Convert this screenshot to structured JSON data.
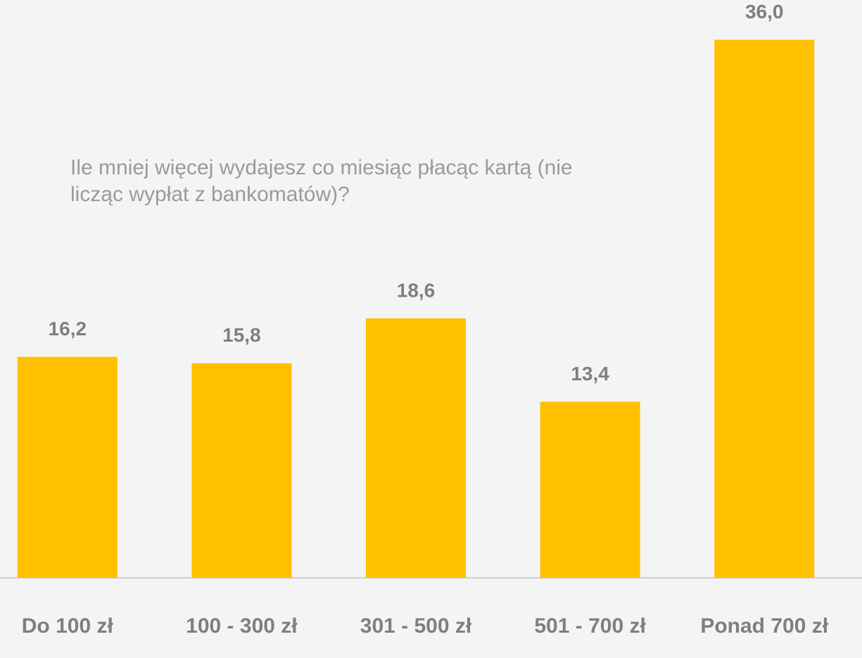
{
  "chart_data": {
    "type": "bar",
    "title": "Ile mniej więcej wydajesz co miesiąc płacąc kartą (nie licząc wypłat z bankomatów)?",
    "categories": [
      "Do 100 zł",
      "100 - 300 zł",
      "301 - 500 zł",
      "501 - 700 zł",
      "Ponad 700 zł"
    ],
    "values": [
      16.2,
      15.8,
      18.6,
      13.4,
      36.0
    ],
    "value_labels": [
      "16,2",
      "15,8",
      "18,6",
      "13,4",
      "36,0"
    ],
    "color": "#ffc000",
    "ylim": [
      2.4,
      38
    ]
  }
}
